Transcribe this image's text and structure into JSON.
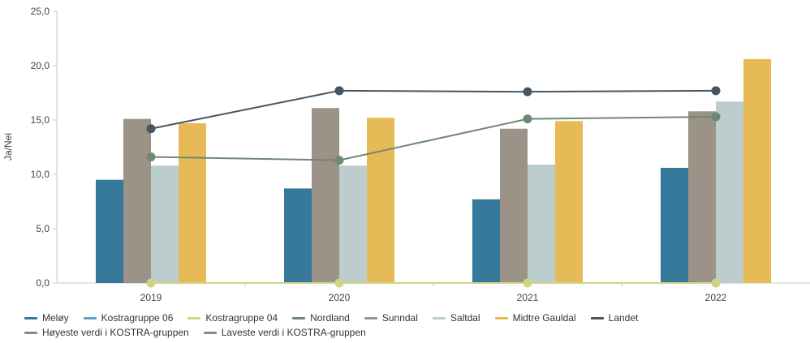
{
  "chart_data": {
    "type": "bar",
    "ylabel": "Ja/Nei",
    "ylim": [
      0,
      25
    ],
    "yticks": [
      "0,0",
      "5,0",
      "10,0",
      "15,0",
      "20,0",
      "25,0"
    ],
    "categories": [
      "2019",
      "2020",
      "2021",
      "2022"
    ],
    "grid": false,
    "legend_position": "bottom",
    "bar_series": [
      {
        "name": "Meløy",
        "color": "#35789a",
        "values": [
          9.5,
          8.7,
          7.7,
          10.6
        ]
      },
      {
        "name": "Sunndal",
        "color": "#9b9288",
        "values": [
          15.1,
          16.1,
          14.2,
          15.8
        ]
      },
      {
        "name": "Saltdal",
        "color": "#bccdcd",
        "values": [
          10.8,
          10.8,
          10.9,
          16.7
        ]
      },
      {
        "name": "Midtre Gauldal",
        "color": "#e6ba57",
        "values": [
          14.7,
          15.2,
          14.9,
          20.6
        ]
      }
    ],
    "line_series": [
      {
        "name": "Landet",
        "color": "#475560",
        "values": [
          14.2,
          17.7,
          17.6,
          17.7
        ]
      },
      {
        "name": "Nordland",
        "color": "#6f8872",
        "values": [
          11.6,
          11.3,
          15.1,
          15.3
        ]
      },
      {
        "name": "Kostragruppe 04",
        "color": "#cfd384",
        "values": [
          0,
          0,
          0,
          0
        ]
      }
    ],
    "legend": [
      {
        "name": "Meløy",
        "color": "#35789a"
      },
      {
        "name": "Kostragruppe 06",
        "color": "#5aa5c8"
      },
      {
        "name": "Kostragruppe 04",
        "color": "#cfd384"
      },
      {
        "name": "Nordland",
        "color": "#6f8872"
      },
      {
        "name": "Sunndal",
        "color": "#9b9288"
      },
      {
        "name": "Saltdal",
        "color": "#bccdcd"
      },
      {
        "name": "Midtre Gauldal",
        "color": "#e6ba57"
      },
      {
        "name": "Landet",
        "color": "#475560"
      },
      {
        "name": "Høyeste verdi i KOSTRA-gruppen",
        "color": "#8a8a8a"
      },
      {
        "name": "Laveste verdi i KOSTRA-gruppen",
        "color": "#8a8a8a"
      }
    ]
  }
}
